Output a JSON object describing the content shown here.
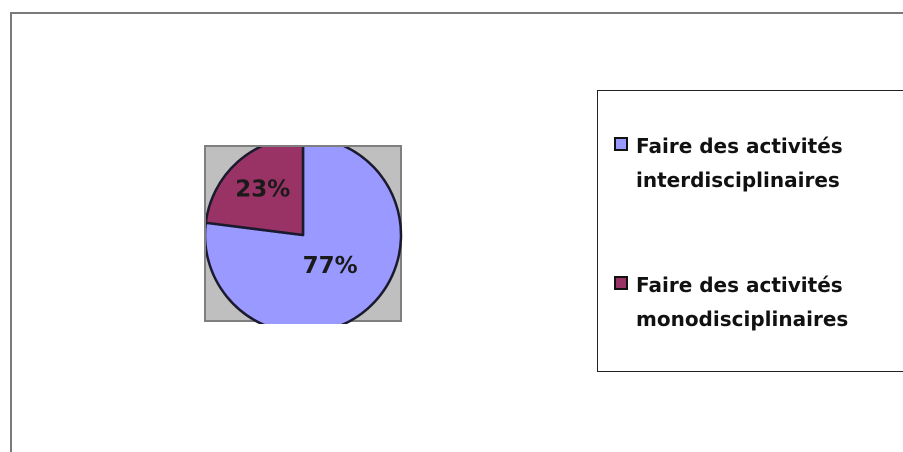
{
  "chart_data": {
    "type": "pie",
    "title": "",
    "slices": [
      {
        "label": "Faire des activités interdisciplinaires",
        "value": 77,
        "display": "77%",
        "color": "#9999ff"
      },
      {
        "label": "Faire des activités monodisciplinaires",
        "value": 23,
        "display": "23%",
        "color": "#993366"
      }
    ],
    "legend_position": "right",
    "plot_background": "#c0c0c0"
  }
}
